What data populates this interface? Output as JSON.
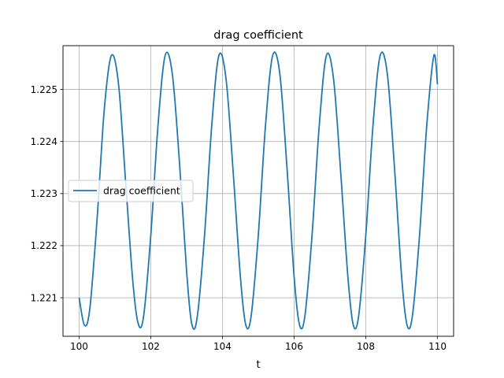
{
  "chart_data": {
    "type": "line",
    "title": "drag coefficient",
    "xlabel": "t",
    "ylabel": "",
    "xlim": [
      99.55,
      110.45
    ],
    "ylim": [
      1.22026,
      1.22584
    ],
    "grid": true,
    "legend_position": "center-left",
    "x_ticks": [
      100,
      102,
      104,
      106,
      108,
      110
    ],
    "x_tick_labels": [
      "100",
      "102",
      "104",
      "106",
      "108",
      "110"
    ],
    "y_ticks": [
      1.221,
      1.222,
      1.223,
      1.224,
      1.225
    ],
    "y_tick_labels": [
      "1.221",
      "1.222",
      "1.223",
      "1.224",
      "1.225"
    ],
    "series": [
      {
        "name": "drag coefficient",
        "color": "#1f77b4",
        "x": [
          100.0,
          100.15,
          100.3,
          100.5,
          100.7,
          100.9,
          101.1,
          101.3,
          101.5,
          101.65,
          101.8,
          102.0,
          102.2,
          102.4,
          102.6,
          102.8,
          103.0,
          103.15,
          103.3,
          103.5,
          103.7,
          103.9,
          104.1,
          104.3,
          104.5,
          104.65,
          104.8,
          105.0,
          105.2,
          105.4,
          105.6,
          105.8,
          106.0,
          106.15,
          106.3,
          106.5,
          106.7,
          106.9,
          107.1,
          107.3,
          107.5,
          107.65,
          107.8,
          108.0,
          108.2,
          108.4,
          108.6,
          108.8,
          109.0,
          109.15,
          109.3,
          109.5,
          109.7,
          109.9,
          110.0
        ],
        "y": [
          1.221,
          1.22047,
          1.2208,
          1.2225,
          1.2246,
          1.22565,
          1.2251,
          1.2232,
          1.2213,
          1.2205,
          1.22065,
          1.2222,
          1.2243,
          1.22565,
          1.2253,
          1.2236,
          1.2215,
          1.22048,
          1.22065,
          1.2222,
          1.2243,
          1.22565,
          1.2252,
          1.2234,
          1.2214,
          1.22048,
          1.22065,
          1.2222,
          1.2243,
          1.22565,
          1.2253,
          1.2235,
          1.2214,
          1.22048,
          1.22065,
          1.2222,
          1.2243,
          1.22565,
          1.2252,
          1.2234,
          1.2214,
          1.22048,
          1.22065,
          1.2222,
          1.2243,
          1.22565,
          1.2253,
          1.2235,
          1.2214,
          1.22048,
          1.22065,
          1.2222,
          1.2243,
          1.22565,
          1.2251
        ]
      }
    ]
  }
}
